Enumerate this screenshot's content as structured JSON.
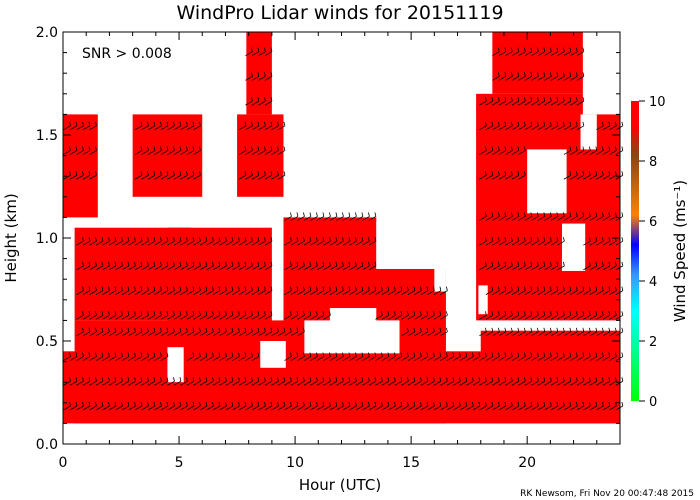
{
  "chart_data": {
    "type": "heatmap",
    "title": "WindPro Lidar winds for 20151119",
    "xlabel": "Hour (UTC)",
    "ylabel": "Height (km)",
    "xlim": [
      0,
      24
    ],
    "ylim": [
      0,
      2.0
    ],
    "x_ticks": [
      0,
      5,
      10,
      15,
      20
    ],
    "x_tick_labels": [
      "0",
      "5",
      "10",
      "15",
      "20"
    ],
    "y_ticks": [
      0.0,
      0.5,
      1.0,
      1.5,
      2.0
    ],
    "y_tick_labels": [
      "0.0",
      "0.5",
      "1.0",
      "1.5",
      "2.0"
    ],
    "annotation": "SNR > 0.008",
    "colorbar": {
      "label": "Wind Speed (ms⁻¹)",
      "range": [
        0,
        10
      ],
      "ticks": [
        0,
        2,
        4,
        6,
        8,
        10
      ],
      "tick_labels": [
        "0",
        "2",
        "4",
        "6",
        "8",
        "10"
      ],
      "colors": [
        "#00ff00",
        "#00ffff",
        "#0000ff",
        "#ff8000",
        "#8b4513",
        "#ff0000"
      ]
    },
    "dominant_color": "#ff0000",
    "range_gates_km": [
      0.17,
      0.29,
      0.41,
      0.53,
      0.61,
      0.73,
      0.85,
      0.97,
      1.09,
      1.29,
      1.41,
      1.53,
      1.65,
      1.77,
      1.89
    ],
    "coverage": [
      {
        "y": [
          0.1,
          0.45
        ],
        "x": [
          0,
          24
        ]
      },
      {
        "y": [
          0.1,
          0.6
        ],
        "x": [
          0.5,
          9.5
        ]
      },
      {
        "y": [
          0.1,
          0.55
        ],
        "x": [
          9.5,
          16.5
        ]
      },
      {
        "y": [
          0.1,
          0.55
        ],
        "x": [
          18,
          24
        ]
      },
      {
        "y": [
          0.6,
          1.05
        ],
        "x": [
          0.5,
          5.5
        ]
      },
      {
        "y": [
          0.55,
          1.05
        ],
        "x": [
          4.5,
          9.0
        ]
      },
      {
        "y": [
          1.1,
          1.6
        ],
        "x": [
          0,
          1.5
        ]
      },
      {
        "y": [
          1.2,
          1.6
        ],
        "x": [
          3.0,
          6.0
        ]
      },
      {
        "y": [
          1.2,
          1.6
        ],
        "x": [
          7.5,
          9.5
        ]
      },
      {
        "y": [
          1.6,
          2.0
        ],
        "x": [
          7.9,
          9.0
        ]
      },
      {
        "y": [
          0.5,
          1.1
        ],
        "x": [
          9.5,
          13.5
        ]
      },
      {
        "y": [
          0.5,
          0.85
        ],
        "x": [
          13.0,
          16.5
        ]
      },
      {
        "y": [
          0.6,
          1.7
        ],
        "x": [
          17.8,
          24
        ]
      },
      {
        "y": [
          1.7,
          2.0
        ],
        "x": [
          18.5,
          22.5
        ]
      }
    ],
    "gaps": [
      {
        "y": [
          0.3,
          0.47
        ],
        "x": [
          4.5,
          5.2
        ]
      },
      {
        "y": [
          0.37,
          0.5
        ],
        "x": [
          8.5,
          9.6
        ]
      },
      {
        "y": [
          0.44,
          0.6
        ],
        "x": [
          10.4,
          14.5
        ]
      },
      {
        "y": [
          0.55,
          0.66
        ],
        "x": [
          11.5,
          13.5
        ]
      },
      {
        "y": [
          0.74,
          0.95
        ],
        "x": [
          16.0,
          16.5
        ]
      },
      {
        "y": [
          0.85,
          1.08
        ],
        "x": [
          13.5,
          16.6
        ]
      },
      {
        "y": [
          0.63,
          0.77
        ],
        "x": [
          17.9,
          18.3
        ]
      },
      {
        "y": [
          1.12,
          1.43
        ],
        "x": [
          20.0,
          21.7
        ]
      },
      {
        "y": [
          0.84,
          1.07
        ],
        "x": [
          21.5,
          22.5
        ]
      },
      {
        "y": [
          1.6,
          2.0
        ],
        "x": [
          22.4,
          24
        ]
      },
      {
        "y": [
          1.43,
          1.6
        ],
        "x": [
          22.3,
          23.0
        ]
      }
    ]
  },
  "footer": {
    "credit": "RK Newsom, Fri Nov 20 00:47:48 2015"
  }
}
